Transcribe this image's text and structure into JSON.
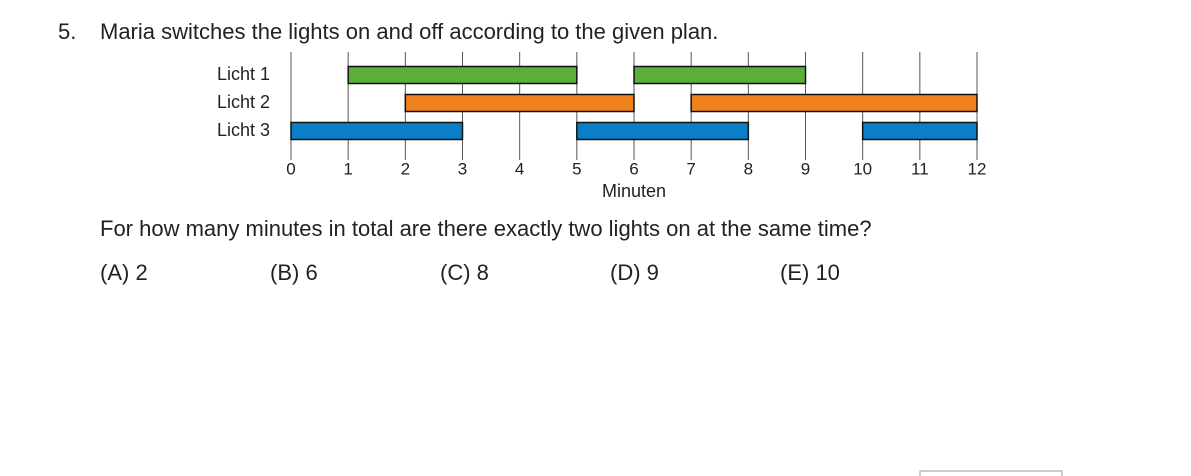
{
  "question": {
    "number": "5.",
    "text": "Maria switches the lights on and off according to the given plan."
  },
  "chart_data": {
    "type": "gantt",
    "categories": [
      "Licht 1",
      "Licht 2",
      "Licht 3"
    ],
    "series": [
      {
        "name": "Licht 1",
        "color": "#5aaf3c",
        "intervals": [
          [
            1,
            5
          ],
          [
            6,
            9
          ]
        ]
      },
      {
        "name": "Licht 2",
        "color": "#f0821e",
        "intervals": [
          [
            2,
            6
          ],
          [
            7,
            12
          ]
        ]
      },
      {
        "name": "Licht 3",
        "color": "#0a7fc8",
        "intervals": [
          [
            0,
            3
          ],
          [
            5,
            8
          ],
          [
            10,
            12
          ]
        ]
      }
    ],
    "xlabel": "Minuten",
    "xlim": [
      0,
      12
    ],
    "xticks": [
      0,
      1,
      2,
      3,
      4,
      5,
      6,
      7,
      8,
      9,
      10,
      11,
      12
    ],
    "grid": true
  },
  "prompt": "For how many minutes in total are there exactly two lights on at the same time?",
  "options": [
    "(A) 2",
    "(B) 6",
    "(C) 8",
    "(D) 9",
    "(E) 10"
  ]
}
